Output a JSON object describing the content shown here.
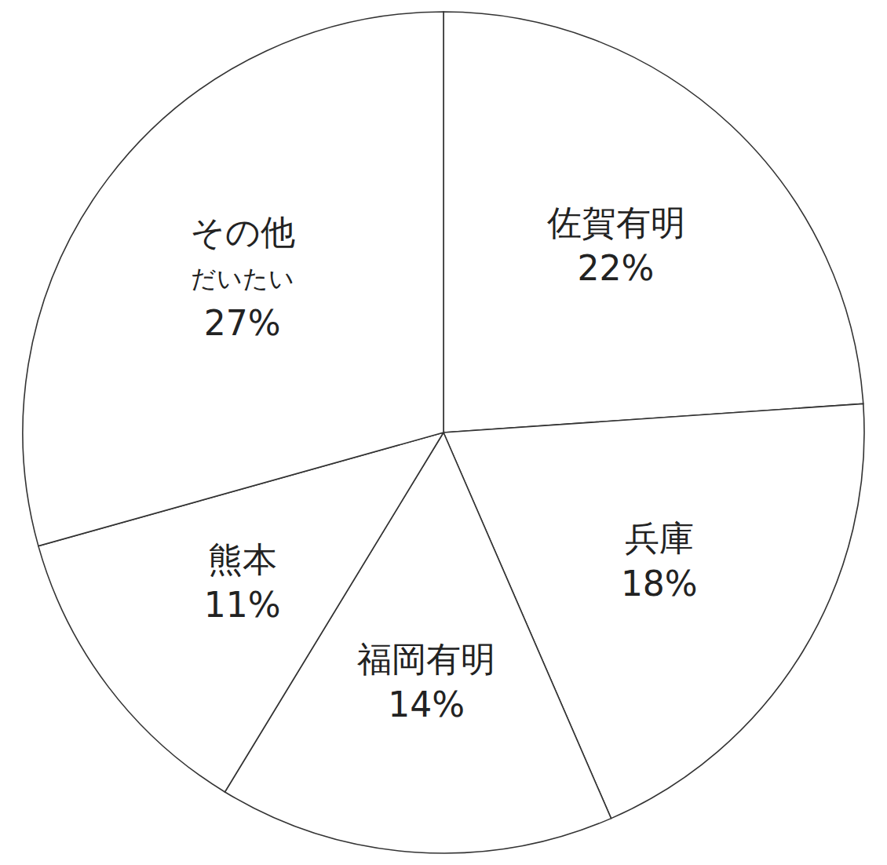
{
  "chart_data": {
    "type": "pie",
    "categories": [
      "佐賀有明",
      "兵庫",
      "福岡有明",
      "熊本",
      "その他"
    ],
    "values": [
      22,
      18,
      14,
      11,
      27
    ],
    "value_labels": [
      "22%",
      "18%",
      "14%",
      "11%",
      "27%"
    ],
    "data_labels": true,
    "annotations": [
      "だいたい"
    ],
    "color": "#ffffff"
  }
}
